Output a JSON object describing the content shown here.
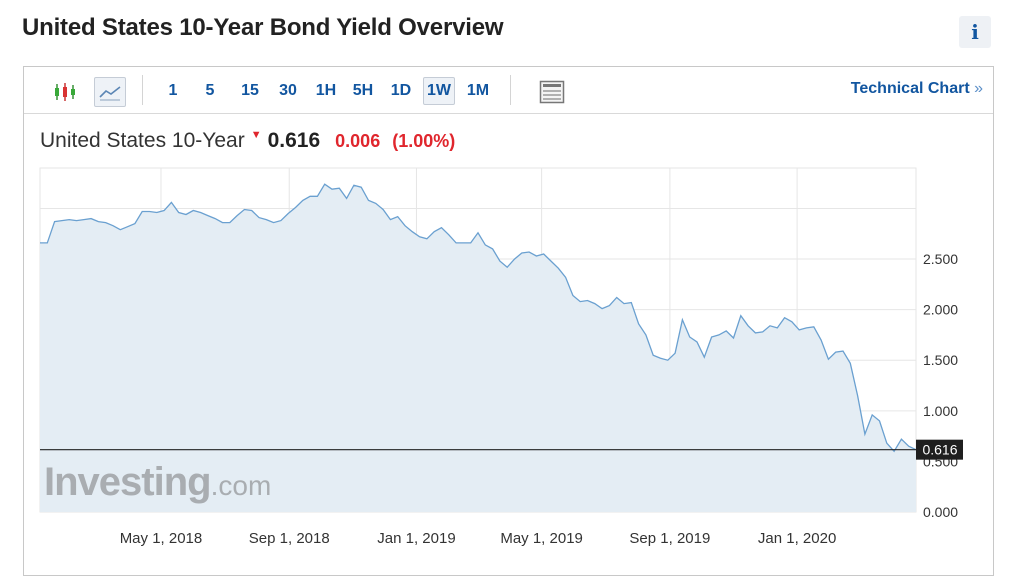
{
  "page": {
    "title": "United States 10-Year Bond Yield Overview",
    "info_glyph": "i"
  },
  "toolbar": {
    "intervals": [
      "1",
      "5",
      "15",
      "30",
      "1H",
      "5H",
      "1D",
      "1W",
      "1M"
    ],
    "active_interval": "1W",
    "technical_chart_label": "Technical Chart",
    "technical_chart_arrow": "»",
    "icons": [
      "candlestick-icon",
      "line-chart-icon",
      "table-icon"
    ]
  },
  "quote": {
    "name": "United States 10-Year",
    "price": "0.616",
    "change": "0.006",
    "change_pct": "(1.00%)"
  },
  "watermark": {
    "brand": "Investing",
    "suffix": ".com"
  },
  "chart_data": {
    "type": "area",
    "x_axis": {
      "ticks": [
        "May 1, 2018",
        "Sep 1, 2018",
        "Jan 1, 2019",
        "May 1, 2019",
        "Sep 1, 2019",
        "Jan 1, 2020"
      ]
    },
    "y_axis": {
      "ticks": [
        "0.000",
        "0.500",
        "1.000",
        "1.500",
        "2.000",
        "2.500"
      ],
      "range": [
        0,
        3.4
      ],
      "position": "right"
    },
    "last_value_label": "0.616",
    "last_value": 0.616,
    "colors": {
      "line": "#6aa0d0",
      "fill": "#e4edf4",
      "grid": "#e6e6e6",
      "price_line": "#222222"
    },
    "series": [
      {
        "x": [
          "2018-01-05",
          "2018-01-12",
          "2018-01-19",
          "2018-01-26",
          "2018-02-02",
          "2018-02-09",
          "2018-02-16",
          "2018-02-23",
          "2018-03-02",
          "2018-03-09",
          "2018-03-16",
          "2018-03-23",
          "2018-03-30",
          "2018-04-06",
          "2018-04-13",
          "2018-04-20",
          "2018-04-27",
          "2018-05-04",
          "2018-05-11",
          "2018-05-18",
          "2018-05-25",
          "2018-06-01",
          "2018-06-08",
          "2018-06-15",
          "2018-06-22",
          "2018-06-29",
          "2018-07-06",
          "2018-07-13",
          "2018-07-20",
          "2018-07-27",
          "2018-08-03",
          "2018-08-10",
          "2018-08-17",
          "2018-08-24",
          "2018-08-31",
          "2018-09-07",
          "2018-09-14",
          "2018-09-21",
          "2018-09-28",
          "2018-10-05",
          "2018-10-12",
          "2018-10-19",
          "2018-10-26",
          "2018-11-02",
          "2018-11-09",
          "2018-11-16",
          "2018-11-23",
          "2018-11-30",
          "2018-12-07",
          "2018-12-14",
          "2018-12-21",
          "2018-12-28",
          "2019-01-04",
          "2019-01-11",
          "2019-01-18",
          "2019-01-25",
          "2019-02-01",
          "2019-02-08",
          "2019-02-15",
          "2019-02-22",
          "2019-03-01",
          "2019-03-08",
          "2019-03-15",
          "2019-03-22",
          "2019-03-29",
          "2019-04-05",
          "2019-04-12",
          "2019-04-19",
          "2019-04-26",
          "2019-05-03",
          "2019-05-10",
          "2019-05-17",
          "2019-05-24",
          "2019-05-31",
          "2019-06-07",
          "2019-06-14",
          "2019-06-21",
          "2019-06-28",
          "2019-07-05",
          "2019-07-12",
          "2019-07-19",
          "2019-07-26",
          "2019-08-02",
          "2019-08-09",
          "2019-08-16",
          "2019-08-23",
          "2019-08-30",
          "2019-09-06",
          "2019-09-13",
          "2019-09-20",
          "2019-09-27",
          "2019-10-04",
          "2019-10-11",
          "2019-10-18",
          "2019-10-25",
          "2019-11-01",
          "2019-11-08",
          "2019-11-15",
          "2019-11-22",
          "2019-11-29",
          "2019-12-06",
          "2019-12-13",
          "2019-12-20",
          "2019-12-27",
          "2020-01-03",
          "2020-01-10",
          "2020-01-17",
          "2020-01-24",
          "2020-01-31",
          "2020-02-07",
          "2020-02-14",
          "2020-02-21",
          "2020-02-28",
          "2020-03-06",
          "2020-03-13",
          "2020-03-20",
          "2020-03-27",
          "2020-04-03",
          "2020-04-10",
          "2020-04-17",
          "2020-04-24"
        ],
        "y": [
          2.66,
          2.66,
          2.87,
          2.88,
          2.89,
          2.88,
          2.89,
          2.9,
          2.87,
          2.86,
          2.83,
          2.79,
          2.82,
          2.85,
          2.97,
          2.97,
          2.96,
          2.98,
          3.06,
          2.96,
          2.94,
          2.98,
          2.96,
          2.93,
          2.9,
          2.86,
          2.86,
          2.93,
          2.99,
          2.98,
          2.91,
          2.89,
          2.86,
          2.88,
          2.95,
          3.01,
          3.08,
          3.12,
          3.12,
          3.24,
          3.19,
          3.2,
          3.1,
          3.23,
          3.21,
          3.08,
          3.05,
          2.99,
          2.89,
          2.92,
          2.83,
          2.77,
          2.72,
          2.7,
          2.77,
          2.81,
          2.74,
          2.66,
          2.66,
          2.66,
          2.76,
          2.64,
          2.6,
          2.48,
          2.42,
          2.5,
          2.56,
          2.57,
          2.53,
          2.55,
          2.48,
          2.41,
          2.32,
          2.14,
          2.08,
          2.09,
          2.06,
          2.01,
          2.04,
          2.12,
          2.06,
          2.07,
          1.86,
          1.75,
          1.55,
          1.52,
          1.5,
          1.57,
          1.9,
          1.73,
          1.68,
          1.53,
          1.73,
          1.75,
          1.79,
          1.72,
          1.94,
          1.84,
          1.77,
          1.78,
          1.84,
          1.82,
          1.92,
          1.88,
          1.8,
          1.82,
          1.83,
          1.7,
          1.51,
          1.58,
          1.59,
          1.47,
          1.15,
          0.77,
          0.96,
          0.9,
          0.68,
          0.6,
          0.72,
          0.65,
          0.616
        ]
      }
    ]
  }
}
